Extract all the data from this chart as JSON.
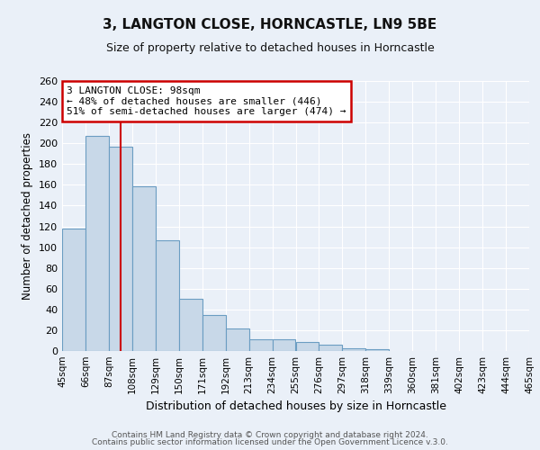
{
  "title": "3, LANGTON CLOSE, HORNCASTLE, LN9 5BE",
  "subtitle": "Size of property relative to detached houses in Horncastle",
  "xlabel": "Distribution of detached houses by size in Horncastle",
  "ylabel": "Number of detached properties",
  "bar_heights": [
    118,
    207,
    197,
    159,
    107,
    50,
    35,
    22,
    11,
    11,
    9,
    6,
    3,
    2
  ],
  "bin_edges": [
    45,
    66,
    87,
    108,
    129,
    150,
    171,
    192,
    213,
    234,
    255,
    276,
    297,
    318,
    339,
    360,
    381,
    402,
    423,
    444,
    465
  ],
  "x_labels": [
    "45sqm",
    "66sqm",
    "87sqm",
    "108sqm",
    "129sqm",
    "150sqm",
    "171sqm",
    "192sqm",
    "213sqm",
    "234sqm",
    "255sqm",
    "276sqm",
    "297sqm",
    "318sqm",
    "339sqm",
    "360sqm",
    "381sqm",
    "402sqm",
    "423sqm",
    "444sqm",
    "465sqm"
  ],
  "bar_color": "#c8d8e8",
  "bar_edge_color": "#6b9dc2",
  "background_color": "#eaf0f8",
  "grid_color": "#ffffff",
  "red_line_x": 98,
  "annotation_title": "3 LANGTON CLOSE: 98sqm",
  "annotation_line1": "← 48% of detached houses are smaller (446)",
  "annotation_line2": "51% of semi-detached houses are larger (474) →",
  "annotation_box_edge": "#cc0000",
  "ylim": [
    0,
    260
  ],
  "yticks": [
    0,
    20,
    40,
    60,
    80,
    100,
    120,
    140,
    160,
    180,
    200,
    220,
    240,
    260
  ],
  "footer1": "Contains HM Land Registry data © Crown copyright and database right 2024.",
  "footer2": "Contains public sector information licensed under the Open Government Licence v.3.0."
}
